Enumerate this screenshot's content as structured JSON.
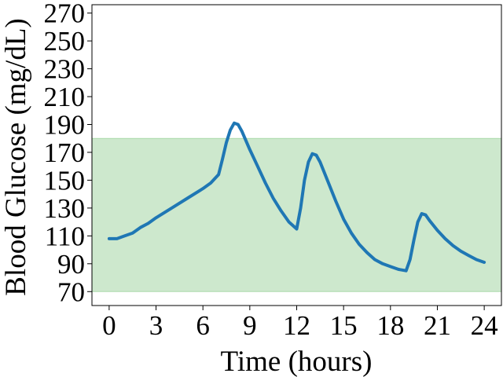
{
  "chart_data": {
    "type": "line",
    "title": "",
    "xlabel": "Time (hours)",
    "ylabel": "Blood Glucose (mg/dL)",
    "xlim": [
      -1.1,
      25.1
    ],
    "ylim": [
      60,
      276
    ],
    "x_ticks": [
      0,
      3,
      6,
      9,
      12,
      15,
      18,
      21,
      24
    ],
    "y_ticks": [
      70,
      90,
      110,
      130,
      150,
      170,
      190,
      210,
      230,
      250,
      270
    ],
    "grid": false,
    "legend": "none",
    "target_range": {
      "low": 70,
      "high": 180,
      "color": "#2ca02c"
    },
    "series": [
      {
        "color": "#1f77b4",
        "x": [
          0,
          0.5,
          1,
          1.5,
          2,
          2.5,
          3,
          4,
          5,
          6,
          6.5,
          7,
          7.25,
          7.5,
          7.75,
          8,
          8.25,
          8.5,
          9,
          9.5,
          10,
          10.5,
          11,
          11.5,
          12,
          12.25,
          12.5,
          12.75,
          13,
          13.25,
          13.5,
          14,
          14.5,
          15,
          15.5,
          16,
          16.5,
          17,
          17.5,
          18,
          18.5,
          19,
          19.25,
          19.5,
          19.75,
          20,
          20.25,
          20.5,
          21,
          21.5,
          22,
          22.5,
          23,
          23.5,
          24
        ],
        "y": [
          108,
          108,
          110,
          112,
          116,
          119,
          123,
          130,
          137,
          144,
          148,
          154,
          165,
          177,
          186,
          191,
          190,
          185,
          172,
          160,
          148,
          137,
          128,
          120,
          115,
          130,
          150,
          163,
          169,
          168,
          163,
          149,
          135,
          122,
          112,
          104,
          98,
          93,
          90,
          88,
          86,
          85,
          93,
          107,
          120,
          126,
          125,
          121,
          114,
          108,
          103,
          99,
          96,
          93,
          91
        ]
      }
    ]
  }
}
